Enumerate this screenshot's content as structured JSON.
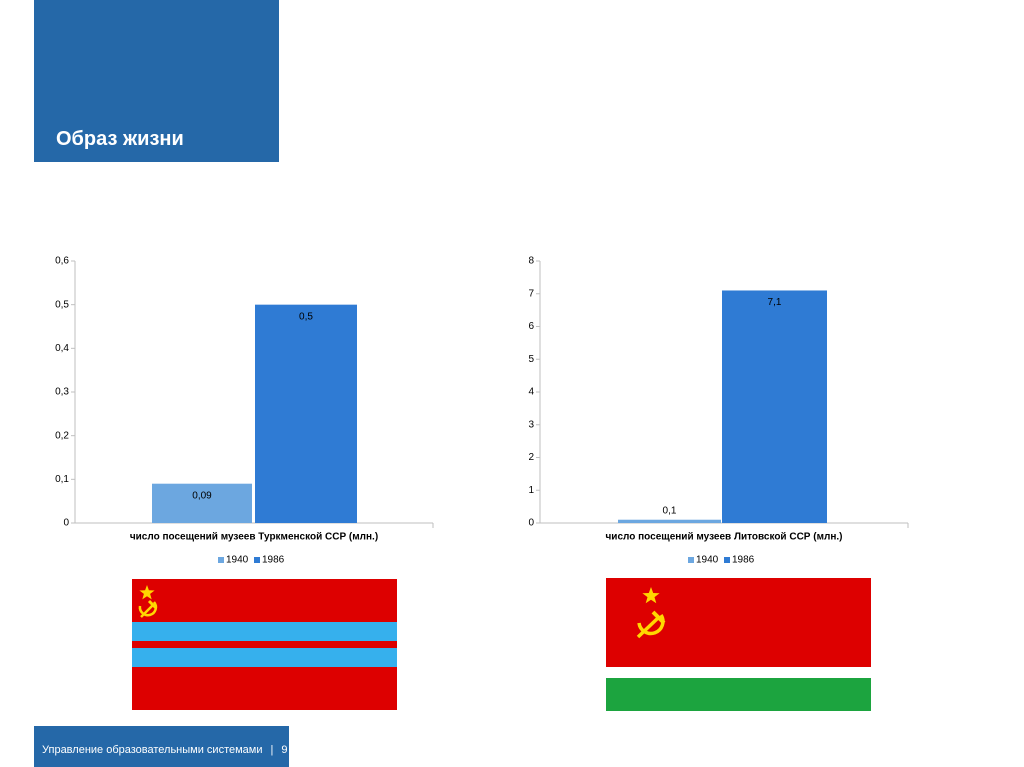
{
  "slide": {
    "title": "Образ жизни",
    "footer_text": "Управление образовательными системами",
    "footer_sep": "|",
    "page_number": "9"
  },
  "colors": {
    "title_bg": "#2568a8",
    "series_1940": "#6ca7e0",
    "series_1986": "#2f7bd4",
    "flag_red": "#dd0000",
    "flag_blue": "#36b0ed",
    "flag_green": "#1ca43f",
    "emblem_gold": "#ffd700"
  },
  "chart_data": [
    {
      "type": "bar",
      "categories": [
        "число посещений музеев Туркменской ССР (млн.)"
      ],
      "series": [
        {
          "name": "1940",
          "values": [
            0.09
          ],
          "labels": [
            "0,09"
          ],
          "color": "#6ca7e0"
        },
        {
          "name": "1986",
          "values": [
            0.5
          ],
          "labels": [
            "0,5"
          ],
          "color": "#2f7bd4"
        }
      ],
      "ylim": [
        0,
        0.6
      ],
      "yticks": [
        0,
        0.1,
        0.2,
        0.3,
        0.4,
        0.5,
        0.6
      ],
      "ytick_labels": [
        "0",
        "0,1",
        "0,2",
        "0,3",
        "0,4",
        "0,5",
        "0,6"
      ],
      "legend": "bottom",
      "grid": false
    },
    {
      "type": "bar",
      "categories": [
        "число посещений музеев Литовской ССР (млн.)"
      ],
      "series": [
        {
          "name": "1940",
          "values": [
            0.1
          ],
          "labels": [
            "0,1"
          ],
          "color": "#6ca7e0"
        },
        {
          "name": "1986",
          "values": [
            7.1
          ],
          "labels": [
            "7,1"
          ],
          "color": "#2f7bd4"
        }
      ],
      "ylim": [
        0,
        8
      ],
      "yticks": [
        0,
        1,
        2,
        3,
        4,
        5,
        6,
        7,
        8
      ],
      "ytick_labels": [
        "0",
        "1",
        "2",
        "3",
        "4",
        "5",
        "6",
        "7",
        "8"
      ],
      "legend": "bottom",
      "grid": false
    }
  ],
  "flags": {
    "left": {
      "name": "Флаг Туркменской ССР",
      "emblem": "hammer-sickle-star"
    },
    "right": {
      "name": "Флаг Литовской ССР",
      "emblem": "hammer-sickle-star"
    }
  }
}
